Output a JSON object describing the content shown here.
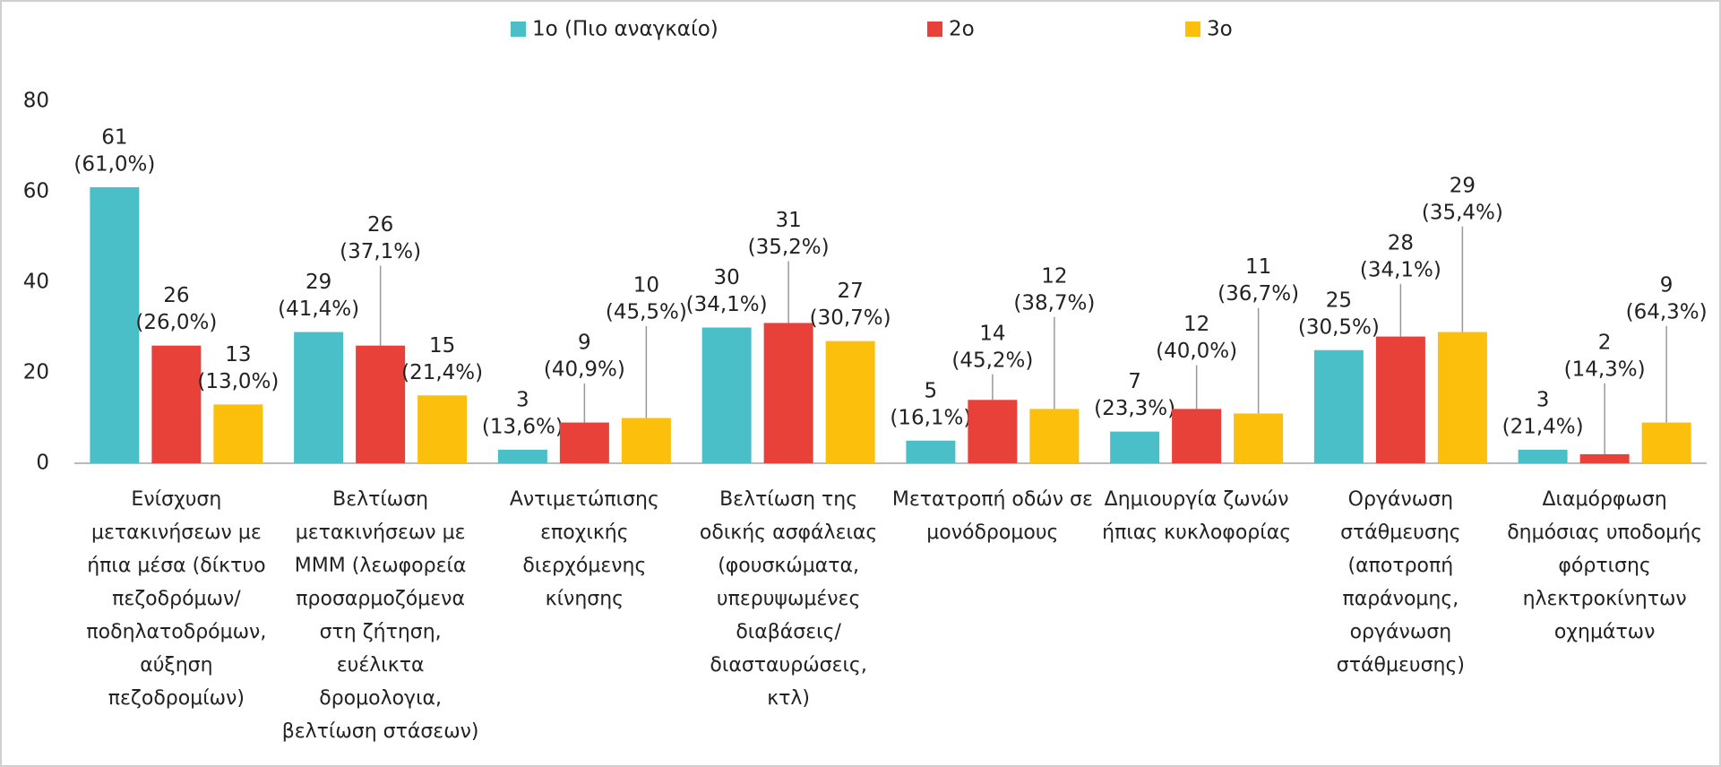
{
  "chart_data": {
    "type": "bar",
    "categories": [
      "Ενίσχυση μετακινήσεων με ήπια μέσα (δίκτυο πεζοδρόμων/ ποδηλατοδρόμων, αύξηση πεζοδρομίων)",
      "Βελτίωση μετακινήσεων με ΜΜΜ (λεωφορεία προσαρμοζόμενα στη ζήτηση, ευέλικτα δρομολογια, βελτίωση στάσεων)",
      "Αντιμετώπισης εποχικής διερχόμενης κίνησης",
      "Βελτίωση της οδικής ασφάλειας (φουσκώματα, υπερυψωμένες διαβάσεις/ διασταυρώσεις, κτλ)",
      "Μετατροπή οδών σε μονόδρομους",
      "Δημιουργία ζωνών ήπιας κυκλοφορίας",
      "Οργάνωση στάθμευσης (αποτροπή παράνομης, οργάνωση στάθμευσης)",
      "Διαμόρφωση δημόσιας υποδομής φόρτισης ηλεκτροκίνητων οχημάτων"
    ],
    "series": [
      {
        "name": "1ο (Πιο αναγκαίο)",
        "color": "#4bbfc8",
        "values": [
          61,
          29,
          3,
          30,
          5,
          7,
          25,
          3
        ],
        "share_labels": [
          "(61,0%)",
          "(41,4%)",
          "(13,6%)",
          "(34,1%)",
          "(16,1%)",
          "(23,3%)",
          "(30,5%)",
          "(21,4%)"
        ]
      },
      {
        "name": "2ο",
        "color": "#e8413a",
        "values": [
          26,
          26,
          9,
          31,
          14,
          12,
          28,
          2
        ],
        "share_labels": [
          "(26,0%)",
          "(37,1%)",
          "(40,9%)",
          "(35,2%)",
          "(45,2%)",
          "(40,0%)",
          "(34,1%)",
          "(14,3%)"
        ]
      },
      {
        "name": "3ο",
        "color": "#fbbf0c",
        "values": [
          13,
          15,
          10,
          27,
          12,
          11,
          29,
          9
        ],
        "share_labels": [
          "(13,0%)",
          "(21,4%)",
          "(45,5%)",
          "(30,7%)",
          "(38,7%)",
          "(36,7%)",
          "(35,4%)",
          "(64,3%)"
        ]
      }
    ],
    "ylim": [
      0,
      80
    ],
    "yticks": [
      0,
      20,
      40,
      60,
      80
    ],
    "grid": false,
    "legend": "top"
  }
}
